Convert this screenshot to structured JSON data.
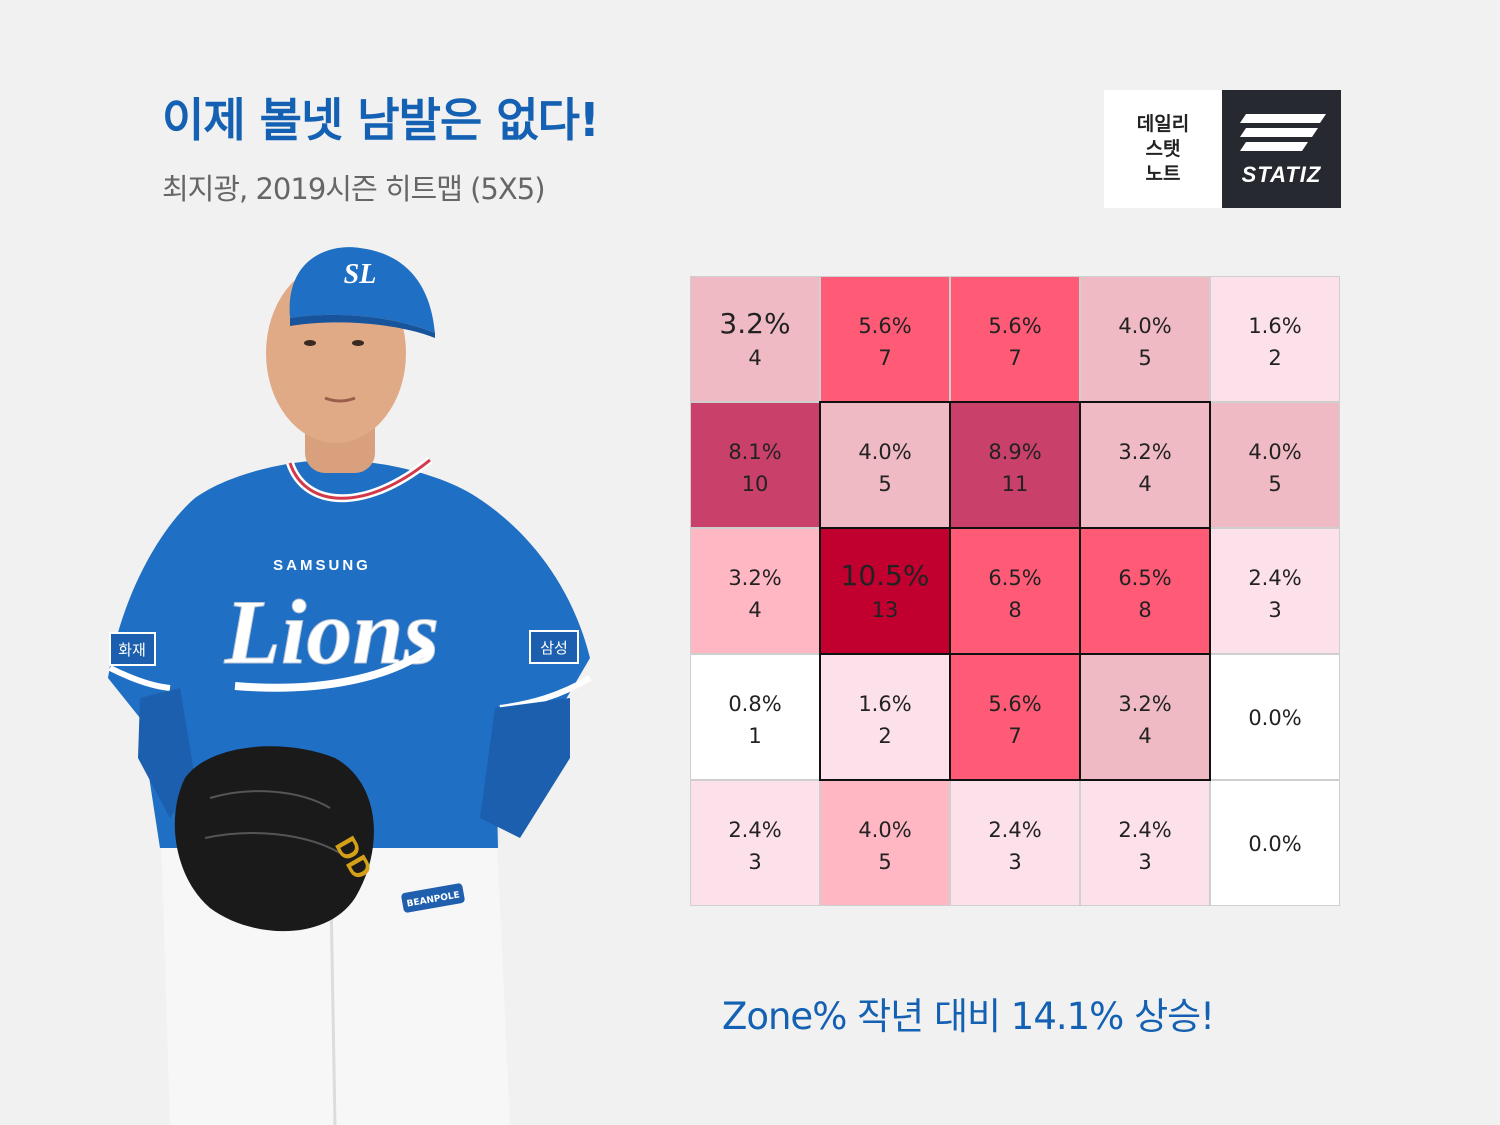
{
  "header": {
    "title": "이제 볼넷 남발은 없다!",
    "subtitle": "최지광, 2019시즌 히트맵 (5X5)"
  },
  "logo": {
    "left_lines": [
      "데일리",
      "스탯",
      "노트"
    ],
    "right_text": "STATIZ"
  },
  "player_graphic": {
    "cap_logo": "SL",
    "jersey_text": "SAMSUNG",
    "jersey_script": "Lions",
    "sleeve_patch_left": "화재",
    "sleeve_patch_right": "삼성",
    "belt_patch": "BEANPOLE",
    "glove_brand": "DD"
  },
  "chart_data": {
    "type": "heatmap",
    "rows": 5,
    "cols": 5,
    "strike_zone": {
      "rows": [
        1,
        3
      ],
      "cols": [
        1,
        3
      ]
    },
    "cells": [
      [
        {
          "pct": "3.2%",
          "count": "4"
        },
        {
          "pct": "5.6%",
          "count": "7"
        },
        {
          "pct": "5.6%",
          "count": "7"
        },
        {
          "pct": "4.0%",
          "count": "5"
        },
        {
          "pct": "1.6%",
          "count": "2"
        }
      ],
      [
        {
          "pct": "8.1%",
          "count": "10"
        },
        {
          "pct": "4.0%",
          "count": "5"
        },
        {
          "pct": "8.9%",
          "count": "11"
        },
        {
          "pct": "3.2%",
          "count": "4"
        },
        {
          "pct": "4.0%",
          "count": "5"
        }
      ],
      [
        {
          "pct": "3.2%",
          "count": "4"
        },
        {
          "pct": "10.5%",
          "count": "13"
        },
        {
          "pct": "6.5%",
          "count": "8"
        },
        {
          "pct": "6.5%",
          "count": "8"
        },
        {
          "pct": "2.4%",
          "count": "3"
        }
      ],
      [
        {
          "pct": "0.8%",
          "count": "1"
        },
        {
          "pct": "1.6%",
          "count": "2"
        },
        {
          "pct": "5.6%",
          "count": "7"
        },
        {
          "pct": "3.2%",
          "count": "4"
        },
        {
          "pct": "0.0%",
          "count": ""
        }
      ],
      [
        {
          "pct": "2.4%",
          "count": "3"
        },
        {
          "pct": "4.0%",
          "count": "5"
        },
        {
          "pct": "2.4%",
          "count": "3"
        },
        {
          "pct": "2.4%",
          "count": "3"
        },
        {
          "pct": "0.0%",
          "count": ""
        }
      ]
    ],
    "colors": [
      [
        "#efbac4",
        "#ff5a76",
        "#ff5a76",
        "#efbac4",
        "#fde1ea"
      ],
      [
        "#c9416b",
        "#efbac4",
        "#c9416b",
        "#efbac4",
        "#efbac4"
      ],
      [
        "#ffb7c3",
        "#c2002f",
        "#ff5a76",
        "#ff5a76",
        "#fde1ea"
      ],
      [
        "#ffffff",
        "#fde1ea",
        "#ff5a76",
        "#efbac4",
        "#ffffff"
      ],
      [
        "#fde1ea",
        "#ffb7c3",
        "#fde1ea",
        "#fde1ea",
        "#ffffff"
      ]
    ]
  },
  "footer": {
    "text": "Zone% 작년 대비 14.1% 상승!"
  }
}
